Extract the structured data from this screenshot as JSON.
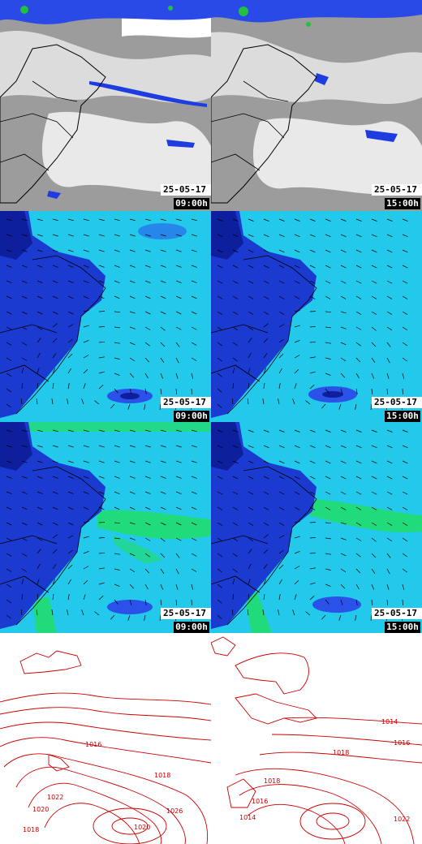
{
  "panels": [
    {
      "id": "satellite-0900",
      "type": "satellite",
      "date": "25-05-17",
      "time": "09:00h"
    },
    {
      "id": "satellite-1500",
      "type": "satellite",
      "date": "25-05-17",
      "time": "15:00h"
    },
    {
      "id": "wind-a-0900",
      "type": "wind",
      "date": "25-05-17",
      "time": "09:00h"
    },
    {
      "id": "wind-a-1500",
      "type": "wind",
      "date": "25-05-17",
      "time": "15:00h"
    },
    {
      "id": "wind-b-0900",
      "type": "wind",
      "date": "25-05-17",
      "time": "09:00h"
    },
    {
      "id": "wind-b-1500",
      "type": "wind",
      "date": "25-05-17",
      "time": "15:00h"
    },
    {
      "id": "pressure-left",
      "type": "pressure"
    },
    {
      "id": "pressure-right",
      "type": "pressure"
    }
  ],
  "pressure_labels": {
    "left": [
      "1016",
      "1018",
      "1020",
      "1022",
      "1026",
      "1020",
      "1018"
    ],
    "right": [
      "1014",
      "1016",
      "1018",
      "1014",
      "1016",
      "1018",
      "1022"
    ]
  },
  "colors": {
    "satellite_bg": "#9a9a9a",
    "cloud": "#f4f4f4",
    "cloud_cold": "#1d3de0",
    "wind_bg": "#22c9ea",
    "land": "#1a3ad0",
    "strong_wind": "#20e060",
    "isobar": "#cc0000"
  }
}
